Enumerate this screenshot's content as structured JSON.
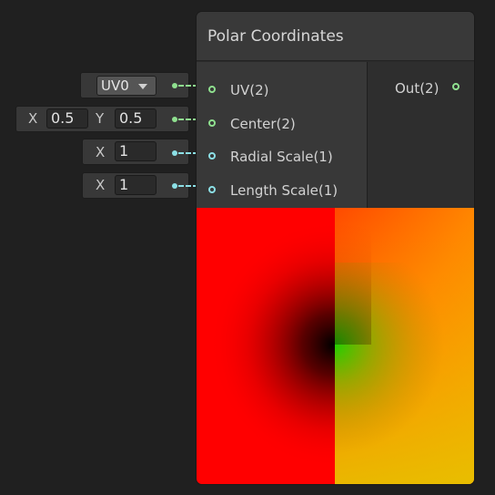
{
  "node": {
    "title": "Polar Coordinates",
    "inputs": [
      {
        "label": "UV(2)",
        "port_color": "#8fe08f"
      },
      {
        "label": "Center(2)",
        "port_color": "#8fe08f"
      },
      {
        "label": "Radial Scale(1)",
        "port_color": "#8ce0e6"
      },
      {
        "label": "Length Scale(1)",
        "port_color": "#8ce0e6"
      }
    ],
    "outputs": [
      {
        "label": "Out(2)",
        "port_color": "#8fe08f"
      }
    ]
  },
  "fields": {
    "uv": {
      "value": "UV0"
    },
    "center": {
      "x_label": "X",
      "x_value": "0.5",
      "y_label": "Y",
      "y_value": "0.5"
    },
    "radial_scale": {
      "x_label": "X",
      "x_value": "1"
    },
    "length_scale": {
      "x_label": "X",
      "x_value": "1"
    }
  },
  "preview": {
    "description_colors": [
      "#ff0000",
      "#00d000",
      "#ffcc00"
    ]
  }
}
